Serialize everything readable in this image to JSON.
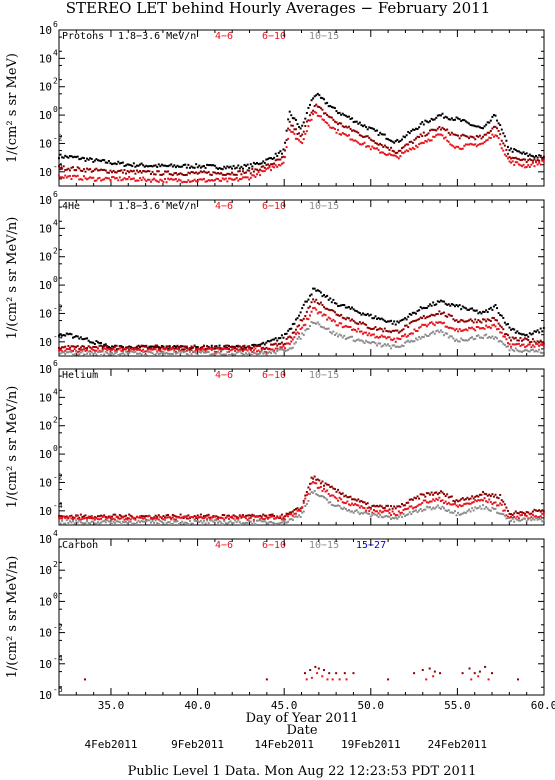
{
  "title": "STEREO LET behind Hourly Averages − February 2011",
  "footer": "Public Level 1 Data. Mon Aug 22 12:23:53 PDT 2011",
  "xlabel": "Day of Year 2011",
  "xlabel2": "Date",
  "x_tick_labels": [
    "35.0",
    "40.0",
    "45.0",
    "50.0",
    "55.0",
    "60.0"
  ],
  "date_labels": [
    "4Feb2011",
    "9Feb2011",
    "14Feb2011",
    "19Feb2011",
    "24Feb2011"
  ],
  "ylabel": "1/(cm² s sr MeV/n)",
  "ylabel_top": "1/(cm² s sr MeV)",
  "colors": {
    "black": "#000000",
    "darkred": "#8b0000",
    "red": "#e8141e",
    "gray": "#8c8c8c",
    "blue": "#0000cc"
  },
  "chart_data": [
    {
      "type": "scatter",
      "name": "Protons",
      "legend": [
        "1.8−3.6 MeV/n",
        "4−6",
        "6−10",
        "10−15"
      ],
      "ylog": true,
      "ylim_exp": [
        -5,
        6
      ],
      "xlim": [
        32,
        60
      ],
      "y_tick_exponents": [
        6,
        4,
        2,
        0,
        -2,
        -4
      ],
      "series": [
        {
          "name": "1.8−3.6 MeV/n",
          "color": "black",
          "x": [
            32,
            33,
            34,
            36,
            38,
            40,
            42,
            43,
            44,
            45,
            45.3,
            46,
            46.5,
            46.8,
            48,
            50,
            51.5,
            53,
            54,
            55,
            56.5,
            57.2,
            58,
            59,
            60
          ],
          "y": [
            -2.9,
            -3.0,
            -3.2,
            -3.5,
            -3.6,
            -3.6,
            -3.7,
            -3.6,
            -3.2,
            -2.5,
            0.2,
            -1.0,
            0.8,
            1.5,
            0.3,
            -1.0,
            -1.9,
            -0.6,
            0.0,
            -0.3,
            -1.0,
            0.0,
            -2.4,
            -2.8,
            -3.0
          ]
        },
        {
          "name": "4−6",
          "color": "darkred",
          "x": [
            32,
            34,
            36,
            38,
            40,
            42,
            43,
            44,
            45,
            45.3,
            46,
            46.5,
            46.8,
            48,
            50,
            51.5,
            53,
            54,
            55,
            56.5,
            57.2,
            58,
            59,
            60
          ],
          "y": [
            -3.7,
            -3.9,
            -4.0,
            -4.1,
            -4.1,
            -4.1,
            -4.0,
            -3.6,
            -3.0,
            -0.5,
            -1.6,
            0.1,
            0.7,
            -0.5,
            -1.7,
            -2.6,
            -1.4,
            -0.9,
            -1.5,
            -1.6,
            -0.7,
            -2.9,
            -3.3,
            -3.0
          ]
        },
        {
          "name": "6−10",
          "color": "red",
          "x": [
            32,
            34,
            36,
            38,
            40,
            42,
            43,
            44,
            45,
            45.3,
            46,
            46.5,
            46.8,
            48,
            50,
            51.5,
            53,
            54,
            55,
            56.5,
            57.2,
            58,
            59,
            60
          ],
          "y": [
            -4.3,
            -4.5,
            -4.5,
            -4.6,
            -4.6,
            -4.6,
            -4.4,
            -3.9,
            -3.3,
            -1.0,
            -2.0,
            -0.4,
            0.2,
            -1.1,
            -2.3,
            -3.0,
            -1.9,
            -1.4,
            -2.3,
            -2.0,
            -1.3,
            -3.3,
            -3.6,
            -3.3
          ]
        }
      ]
    },
    {
      "type": "scatter",
      "name": "4He",
      "legend": [
        "1.8−3.6 MeV/n",
        "4−6",
        "6−10",
        "10−15"
      ],
      "ylog": true,
      "ylim_exp": [
        -5,
        6
      ],
      "xlim": [
        32,
        60
      ],
      "y_tick_exponents": [
        6,
        4,
        2,
        0,
        -2,
        -4
      ],
      "series": [
        {
          "name": "1.8−3.6 MeV/n",
          "color": "black",
          "x": [
            32,
            33,
            34,
            35,
            37,
            40,
            43,
            44,
            45,
            45.5,
            46.2,
            46.7,
            48,
            50,
            51.5,
            53,
            54,
            55,
            56.5,
            57.2,
            58,
            59,
            60
          ],
          "y": [
            -3.5,
            -3.6,
            -4.0,
            -4.4,
            -4.4,
            -4.4,
            -4.4,
            -4.1,
            -3.6,
            -2.8,
            -1.3,
            -0.3,
            -1.3,
            -2.2,
            -2.7,
            -1.6,
            -1.2,
            -1.5,
            -2.0,
            -1.5,
            -3.0,
            -3.6,
            -3.1
          ]
        },
        {
          "name": "4−6",
          "color": "darkred",
          "x": [
            32,
            35,
            40,
            44,
            45,
            45.5,
            46.2,
            46.7,
            48,
            50,
            51.5,
            53,
            54,
            55,
            56.5,
            57.2,
            58,
            60
          ],
          "y": [
            -4.4,
            -4.4,
            -4.4,
            -4.4,
            -4.1,
            -3.5,
            -2.1,
            -1.0,
            -2.0,
            -3.0,
            -3.3,
            -2.3,
            -1.9,
            -2.5,
            -2.5,
            -2.4,
            -3.8,
            -4.0
          ]
        },
        {
          "name": "6−10",
          "color": "red",
          "x": [
            32,
            35,
            40,
            44,
            45,
            45.5,
            46.2,
            46.7,
            48,
            50,
            51.5,
            53,
            54,
            55,
            56.5,
            57.2,
            58,
            60
          ],
          "y": [
            -4.6,
            -4.6,
            -4.6,
            -4.6,
            -4.4,
            -3.9,
            -2.7,
            -1.7,
            -2.7,
            -3.5,
            -3.9,
            -2.9,
            -2.6,
            -3.2,
            -3.0,
            -2.9,
            -4.2,
            -4.3
          ]
        },
        {
          "name": "10−15",
          "color": "gray",
          "x": [
            32,
            40,
            44,
            45,
            45.5,
            46.2,
            46.7,
            48,
            50,
            51.5,
            53,
            54,
            55,
            56.5,
            57.2,
            58,
            60
          ],
          "y": [
            -4.8,
            -4.8,
            -4.8,
            -4.6,
            -4.3,
            -3.3,
            -2.5,
            -3.5,
            -4.1,
            -4.4,
            -3.6,
            -3.3,
            -3.9,
            -3.6,
            -3.7,
            -4.5,
            -4.7
          ]
        }
      ]
    },
    {
      "type": "scatter",
      "name": "Helium",
      "legend": [
        "4−6",
        "6−10",
        "10−15"
      ],
      "ylog": true,
      "ylim_exp": [
        -5,
        6
      ],
      "xlim": [
        32,
        60
      ],
      "y_tick_exponents": [
        6,
        4,
        2,
        0,
        -2,
        -4
      ],
      "series": [
        {
          "name": "4−6",
          "color": "darkred",
          "x": [
            32,
            35,
            40,
            44,
            45,
            46,
            46.6,
            48,
            50,
            51.5,
            53,
            54,
            55,
            56.5,
            57.5,
            58,
            60
          ],
          "y": [
            -4.4,
            -4.4,
            -4.4,
            -4.4,
            -4.4,
            -3.8,
            -1.6,
            -2.6,
            -3.7,
            -3.8,
            -2.9,
            -2.7,
            -3.3,
            -2.8,
            -3.0,
            -4.2,
            -4.0
          ]
        },
        {
          "name": "6−10",
          "color": "red",
          "x": [
            32,
            35,
            40,
            44,
            45,
            46,
            46.6,
            48,
            50,
            51.5,
            53,
            54,
            55,
            56.5,
            57.5,
            58,
            60
          ],
          "y": [
            -4.5,
            -4.5,
            -4.5,
            -4.5,
            -4.5,
            -4.0,
            -2.0,
            -3.1,
            -4.0,
            -4.2,
            -3.4,
            -3.2,
            -3.7,
            -3.2,
            -3.6,
            -4.5,
            -4.3
          ]
        },
        {
          "name": "10−15",
          "color": "gray",
          "x": [
            32,
            40,
            45,
            46,
            46.6,
            48,
            50,
            51.5,
            53,
            54,
            55,
            56.5,
            57.5,
            58,
            60
          ],
          "y": [
            -4.8,
            -4.8,
            -4.8,
            -4.3,
            -2.6,
            -3.7,
            -4.3,
            -4.5,
            -3.9,
            -3.7,
            -4.2,
            -3.7,
            -4.1,
            -4.7,
            -4.6
          ]
        }
      ]
    },
    {
      "type": "scatter",
      "name": "Carbon",
      "legend": [
        "4−6",
        "6−10",
        "10−15",
        "15−27"
      ],
      "ylog": true,
      "ylim_exp": [
        -6,
        4
      ],
      "xlim": [
        32,
        60
      ],
      "y_tick_exponents": [
        4,
        2,
        0,
        -2,
        -4,
        -6
      ],
      "series": [
        {
          "name": "4−6",
          "color": "darkred",
          "x": [
            33.5,
            44.0,
            46.2,
            46.5,
            46.8,
            47.0,
            47.3,
            47.6,
            48.0,
            48.5,
            49.0,
            51.0,
            52.5,
            53.0,
            53.4,
            53.7,
            54.0,
            55.3,
            55.7,
            56.0,
            56.3,
            56.6,
            57.0,
            58.5
          ],
          "y": [
            -5.0,
            -5.0,
            -4.6,
            -4.4,
            -4.2,
            -4.3,
            -4.4,
            -4.6,
            -4.6,
            -4.6,
            -4.6,
            -5.0,
            -4.6,
            -4.4,
            -4.3,
            -4.5,
            -4.6,
            -4.6,
            -4.3,
            -4.6,
            -4.5,
            -4.2,
            -4.6,
            -5.0
          ]
        },
        {
          "name": "6−10",
          "color": "red",
          "x": [
            46.3,
            46.6,
            46.9,
            47.2,
            47.5,
            47.8,
            48.2,
            48.6,
            53.2,
            53.6,
            55.8,
            56.2,
            56.8
          ],
          "y": [
            -5.0,
            -4.9,
            -4.6,
            -4.8,
            -5.0,
            -5.0,
            -5.0,
            -5.0,
            -5.0,
            -4.8,
            -5.0,
            -4.8,
            -5.0
          ]
        }
      ]
    }
  ]
}
